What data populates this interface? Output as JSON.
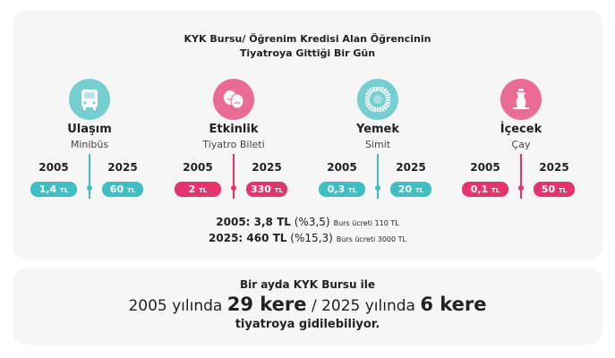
{
  "title": [
    "KYK Bursu/ Öğrenim Kredisi Alan Öğrencinin",
    "Tiyatroya Gittiği Bir Gün"
  ],
  "items": [
    {
      "name": "Ulaşım",
      "sub": "Minibüs",
      "color": "#3fbfc2",
      "year1": "2005",
      "year2": "2025",
      "price1": {
        "value": "1,4",
        "unit": "TL"
      },
      "price2": {
        "value": "60",
        "unit": "TL"
      }
    },
    {
      "name": "Etkinlik",
      "sub": "Tiyatro Bileti",
      "color": "#e6336c",
      "year1": "2005",
      "year2": "2025",
      "price1": {
        "value": "2",
        "unit": "TL"
      },
      "price2": {
        "value": "330",
        "unit": "TL"
      }
    },
    {
      "name": "Yemek",
      "sub": "Simit",
      "color": "#3fbfc2",
      "year1": "2005",
      "year2": "2025",
      "price1": {
        "value": "0,3",
        "unit": "TL"
      },
      "price2": {
        "value": "20",
        "unit": "TL"
      }
    },
    {
      "name": "İçecek",
      "sub": "Çay",
      "color": "#e6336c",
      "year1": "2005",
      "year2": "2025",
      "price1": {
        "value": "0,1",
        "unit": "TL"
      },
      "price2": {
        "value": "50",
        "unit": "TL"
      }
    }
  ],
  "totals": [
    {
      "label": "2005: 3,8 TL",
      "pct": "(%3,5)",
      "note": "Burs ücreti 110 TL"
    },
    {
      "label": "2025: 460 TL",
      "pct": "(%15,3)",
      "note": "Burs ücreti 3000 TL"
    }
  ],
  "summary": {
    "intro": "Bir ayda KYK Bursu ile",
    "part1": "2005 yılında",
    "count1": "29 kere",
    "part2": "/ 2025 yılında",
    "count2": "6 kere",
    "outro": "tiyatroya gidilebiliyor."
  }
}
